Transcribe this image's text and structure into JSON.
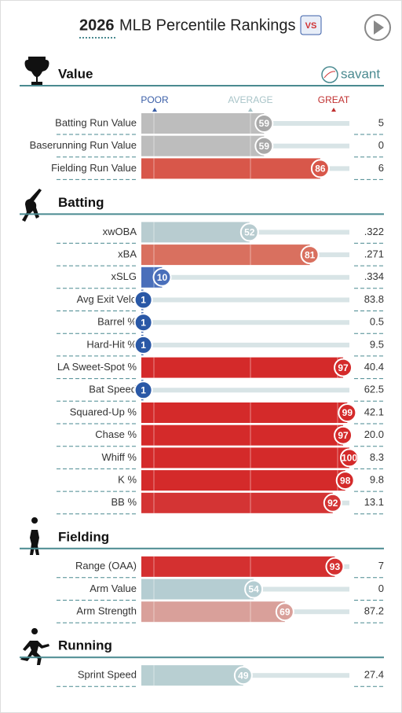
{
  "year": "2026",
  "title": "MLB Percentile Rankings",
  "brand": "savant",
  "scale": {
    "poor": "POOR",
    "average": "AVERAGE",
    "great": "GREAT"
  },
  "sections": [
    {
      "name": "Value",
      "rows": [
        {
          "label": "Batting Run Value",
          "percentile": 59,
          "value": "5",
          "color": "#bdbdbd"
        },
        {
          "label": "Baserunning Run Value",
          "percentile": 59,
          "value": "0",
          "color": "#bdbdbd"
        },
        {
          "label": "Fielding Run Value",
          "percentile": 86,
          "value": "6",
          "color": "#d8574a"
        }
      ]
    },
    {
      "name": "Batting",
      "rows": [
        {
          "label": "xwOBA",
          "percentile": 52,
          "value": ".322",
          "color": "#b8ccd0"
        },
        {
          "label": "xBA",
          "percentile": 81,
          "value": ".271",
          "color": "#d9705f"
        },
        {
          "label": "xSLG",
          "percentile": 10,
          "value": ".334",
          "color": "#4a6fba"
        },
        {
          "label": "Avg Exit Velo",
          "percentile": 1,
          "value": "83.8",
          "color": "#2a58a6"
        },
        {
          "label": "Barrel %",
          "percentile": 1,
          "value": "0.5",
          "color": "#2a58a6"
        },
        {
          "label": "Hard-Hit %",
          "percentile": 1,
          "value": "9.5",
          "color": "#2a58a6"
        },
        {
          "label": "LA Sweet-Spot %",
          "percentile": 97,
          "value": "40.4",
          "color": "#d42a2a"
        },
        {
          "label": "Bat Speed",
          "percentile": 1,
          "value": "62.5",
          "color": "#2a58a6"
        },
        {
          "label": "Squared-Up %",
          "percentile": 99,
          "value": "42.1",
          "color": "#d42a2a"
        },
        {
          "label": "Chase %",
          "percentile": 97,
          "value": "20.0",
          "color": "#d42a2a"
        },
        {
          "label": "Whiff %",
          "percentile": 100,
          "value": "8.3",
          "color": "#d42a2a"
        },
        {
          "label": "K %",
          "percentile": 98,
          "value": "9.8",
          "color": "#d42a2a"
        },
        {
          "label": "BB %",
          "percentile": 92,
          "value": "13.1",
          "color": "#d43434"
        }
      ]
    },
    {
      "name": "Fielding",
      "rows": [
        {
          "label": "Range (OAA)",
          "percentile": 93,
          "value": "7",
          "color": "#d43030"
        },
        {
          "label": "Arm Value",
          "percentile": 54,
          "value": "0",
          "color": "#b5cdd2"
        },
        {
          "label": "Arm Strength",
          "percentile": 69,
          "value": "87.2",
          "color": "#d9a09a"
        }
      ]
    },
    {
      "name": "Running",
      "rows": [
        {
          "label": "Sprint Speed",
          "percentile": 49,
          "value": "27.4",
          "color": "#b8cfd2"
        }
      ]
    }
  ]
}
